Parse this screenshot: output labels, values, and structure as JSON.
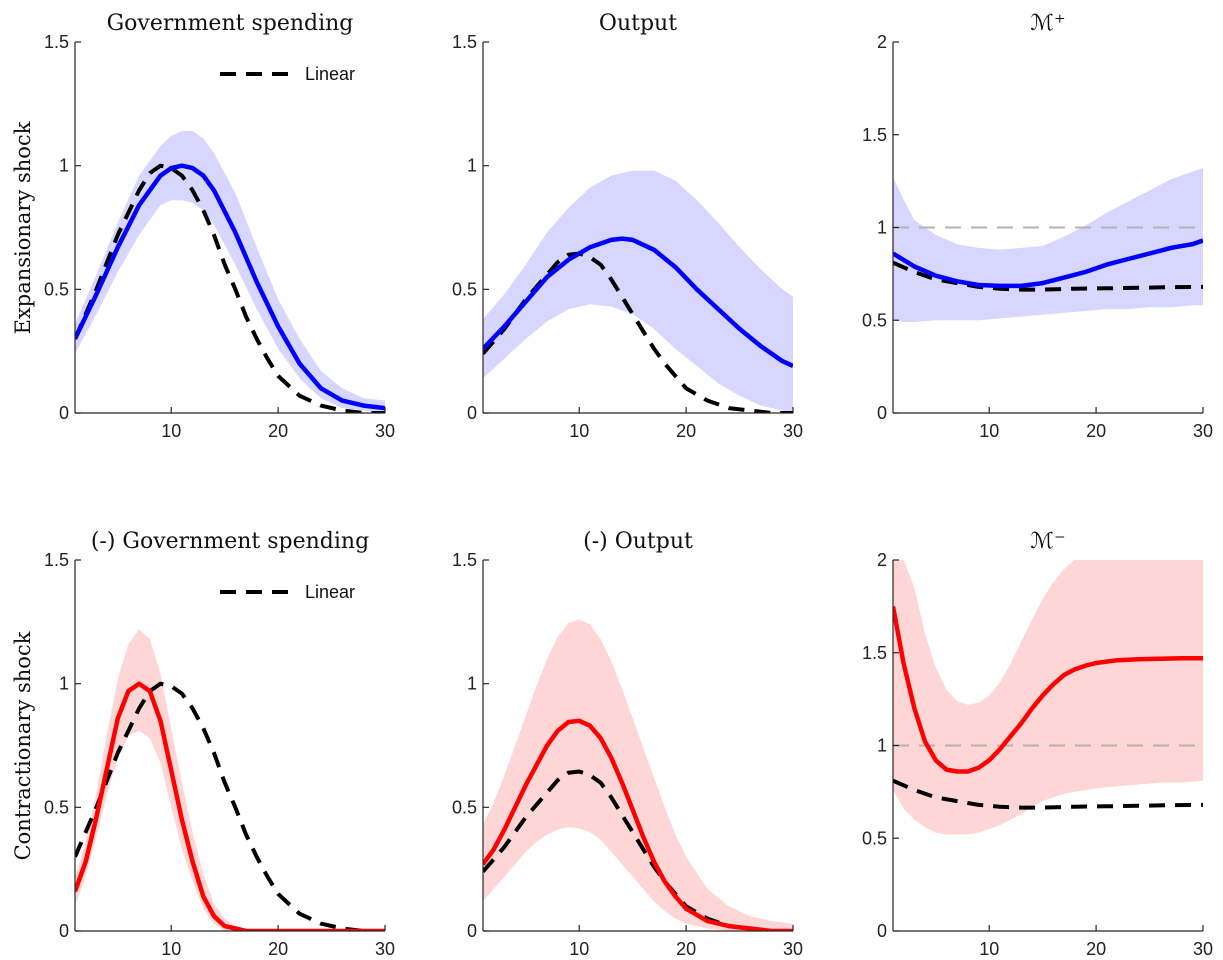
{
  "colors": {
    "expansionary": "#0000ff",
    "expansionary_band": "#d6d6ff",
    "contractionary": "#ff0000",
    "contractionary_band": "#ffd6d6",
    "linear": "#000000",
    "reference": "#b3b3b3"
  },
  "row_labels": [
    "Expansionary shock",
    "Contractionary shock"
  ],
  "chart_data": [
    {
      "type": "line",
      "row": 0,
      "col": 0,
      "title": "Government spending",
      "xlim": [
        1,
        30
      ],
      "ylim": [
        0,
        1.5
      ],
      "xticks": [
        10,
        20,
        30
      ],
      "yticks": [
        0,
        0.5,
        1,
        1.5
      ],
      "legend": {
        "position": "top-right",
        "entries": [
          "Linear"
        ]
      },
      "series": [
        {
          "name": "Linear",
          "style": "dashed",
          "color": "linear",
          "x": [
            1,
            3,
            5,
            7,
            8,
            9,
            10,
            11,
            12,
            13,
            14,
            15,
            16,
            17,
            18,
            19,
            20,
            22,
            24,
            26,
            28,
            30
          ],
          "y": [
            0.3,
            0.5,
            0.72,
            0.9,
            0.97,
            1.0,
            0.99,
            0.96,
            0.9,
            0.82,
            0.72,
            0.6,
            0.5,
            0.39,
            0.3,
            0.22,
            0.15,
            0.07,
            0.03,
            0.01,
            0.0,
            0.0
          ]
        },
        {
          "style": "solid",
          "color": "expansionary",
          "x": [
            1,
            3,
            5,
            7,
            9,
            10,
            11,
            12,
            13,
            14,
            16,
            18,
            20,
            22,
            24,
            26,
            28,
            30
          ],
          "y": [
            0.3,
            0.48,
            0.67,
            0.84,
            0.96,
            0.99,
            1.0,
            0.99,
            0.96,
            0.9,
            0.73,
            0.53,
            0.35,
            0.2,
            0.1,
            0.05,
            0.03,
            0.02
          ]
        }
      ],
      "bands": [
        {
          "color": "expansionary_band",
          "x": [
            1,
            3,
            5,
            7,
            9,
            10,
            11,
            12,
            13,
            14,
            16,
            18,
            20,
            22,
            24,
            26,
            28,
            30
          ],
          "lower": [
            0.24,
            0.4,
            0.57,
            0.72,
            0.84,
            0.86,
            0.86,
            0.85,
            0.82,
            0.76,
            0.6,
            0.42,
            0.26,
            0.14,
            0.06,
            0.02,
            0.01,
            0.0
          ],
          "upper": [
            0.36,
            0.56,
            0.77,
            0.96,
            1.08,
            1.12,
            1.14,
            1.14,
            1.11,
            1.05,
            0.89,
            0.67,
            0.46,
            0.3,
            0.17,
            0.1,
            0.06,
            0.05
          ]
        }
      ]
    },
    {
      "type": "line",
      "row": 0,
      "col": 1,
      "title": "Output",
      "xlim": [
        1,
        30
      ],
      "ylim": [
        0,
        1.5
      ],
      "xticks": [
        10,
        20,
        30
      ],
      "yticks": [
        0,
        0.5,
        1,
        1.5
      ],
      "series": [
        {
          "name": "Linear",
          "style": "dashed",
          "color": "linear",
          "x": [
            1,
            3,
            5,
            7,
            8,
            9,
            10,
            11,
            12,
            13,
            14,
            15,
            16,
            17,
            18,
            19,
            20,
            22,
            24,
            26,
            28,
            30
          ],
          "y": [
            0.24,
            0.34,
            0.46,
            0.56,
            0.61,
            0.64,
            0.645,
            0.63,
            0.6,
            0.54,
            0.47,
            0.4,
            0.33,
            0.26,
            0.2,
            0.15,
            0.1,
            0.05,
            0.02,
            0.01,
            0.0,
            0.0
          ]
        },
        {
          "style": "solid",
          "color": "expansionary",
          "x": [
            1,
            3,
            5,
            7,
            9,
            11,
            13,
            14,
            15,
            17,
            19,
            21,
            23,
            25,
            27,
            29,
            30
          ],
          "y": [
            0.26,
            0.35,
            0.45,
            0.55,
            0.62,
            0.67,
            0.7,
            0.705,
            0.7,
            0.66,
            0.59,
            0.5,
            0.42,
            0.34,
            0.27,
            0.21,
            0.19
          ]
        }
      ],
      "bands": [
        {
          "color": "expansionary_band",
          "x": [
            1,
            3,
            5,
            7,
            9,
            11,
            13,
            15,
            17,
            19,
            21,
            23,
            25,
            27,
            29,
            30
          ],
          "lower": [
            0.14,
            0.22,
            0.3,
            0.37,
            0.42,
            0.44,
            0.43,
            0.4,
            0.34,
            0.26,
            0.19,
            0.12,
            0.07,
            0.03,
            0.01,
            0.0
          ],
          "upper": [
            0.38,
            0.48,
            0.6,
            0.73,
            0.83,
            0.91,
            0.96,
            0.98,
            0.98,
            0.94,
            0.86,
            0.77,
            0.67,
            0.58,
            0.5,
            0.47
          ]
        }
      ]
    },
    {
      "type": "line",
      "row": 0,
      "col": 2,
      "title": "ℳ⁺",
      "xlim": [
        1,
        30
      ],
      "ylim": [
        0,
        2
      ],
      "xticks": [
        10,
        20,
        30
      ],
      "yticks": [
        0,
        0.5,
        1,
        1.5,
        2
      ],
      "reference_line": 1,
      "series": [
        {
          "name": "Linear",
          "style": "dashed",
          "color": "linear",
          "x": [
            1,
            3,
            5,
            7,
            9,
            11,
            13,
            15,
            18,
            21,
            24,
            27,
            30
          ],
          "y": [
            0.81,
            0.76,
            0.72,
            0.7,
            0.68,
            0.67,
            0.665,
            0.665,
            0.67,
            0.672,
            0.675,
            0.678,
            0.68
          ]
        },
        {
          "style": "solid",
          "color": "expansionary",
          "x": [
            1,
            3,
            5,
            7,
            9,
            11,
            13,
            15,
            17,
            19,
            21,
            23,
            25,
            27,
            29,
            30
          ],
          "y": [
            0.86,
            0.79,
            0.74,
            0.71,
            0.69,
            0.685,
            0.685,
            0.7,
            0.73,
            0.76,
            0.8,
            0.83,
            0.86,
            0.89,
            0.91,
            0.93
          ]
        }
      ],
      "bands": [
        {
          "color": "expansionary_band",
          "x": [
            1,
            2,
            3,
            5,
            7,
            9,
            11,
            13,
            15,
            17,
            19,
            21,
            23,
            25,
            27,
            29,
            30
          ],
          "lower": [
            0.5,
            0.49,
            0.49,
            0.5,
            0.5,
            0.5,
            0.51,
            0.52,
            0.53,
            0.54,
            0.55,
            0.56,
            0.56,
            0.57,
            0.57,
            0.58,
            0.58
          ],
          "upper": [
            1.27,
            1.15,
            1.04,
            0.96,
            0.91,
            0.89,
            0.88,
            0.89,
            0.9,
            0.95,
            1.01,
            1.08,
            1.14,
            1.2,
            1.26,
            1.3,
            1.32
          ]
        }
      ]
    },
    {
      "type": "line",
      "row": 1,
      "col": 0,
      "title": "(-) Government spending",
      "xlim": [
        1,
        30
      ],
      "ylim": [
        0,
        1.5
      ],
      "xticks": [
        10,
        20,
        30
      ],
      "yticks": [
        0,
        0.5,
        1,
        1.5
      ],
      "legend": {
        "position": "top-right",
        "entries": [
          "Linear"
        ]
      },
      "series": [
        {
          "name": "Linear",
          "style": "dashed",
          "color": "linear",
          "x": [
            1,
            3,
            5,
            7,
            8,
            9,
            10,
            11,
            12,
            13,
            14,
            15,
            16,
            17,
            18,
            19,
            20,
            22,
            24,
            26,
            28,
            30
          ],
          "y": [
            0.3,
            0.5,
            0.72,
            0.9,
            0.97,
            1.0,
            0.99,
            0.96,
            0.9,
            0.82,
            0.72,
            0.6,
            0.5,
            0.39,
            0.3,
            0.22,
            0.15,
            0.07,
            0.03,
            0.01,
            0.0,
            0.0
          ]
        },
        {
          "style": "solid",
          "color": "contractionary",
          "x": [
            1,
            2,
            3,
            4,
            5,
            6,
            7,
            8,
            9,
            10,
            11,
            12,
            13,
            14,
            15,
            16,
            17,
            18,
            20,
            24,
            30
          ],
          "y": [
            0.16,
            0.28,
            0.46,
            0.66,
            0.86,
            0.97,
            1.0,
            0.97,
            0.85,
            0.65,
            0.45,
            0.28,
            0.14,
            0.06,
            0.02,
            0.01,
            0.0,
            0.0,
            0.0,
            0.0,
            0.0
          ]
        }
      ],
      "bands": [
        {
          "color": "contractionary_band",
          "x": [
            1,
            2,
            3,
            4,
            5,
            6,
            7,
            8,
            9,
            10,
            11,
            12,
            13,
            14,
            15,
            16,
            17,
            18,
            20,
            24,
            30
          ],
          "lower": [
            0.1,
            0.22,
            0.38,
            0.55,
            0.7,
            0.79,
            0.81,
            0.78,
            0.68,
            0.5,
            0.33,
            0.2,
            0.09,
            0.03,
            0.0,
            0.0,
            0.0,
            0.0,
            0.0,
            0.0,
            0.0
          ],
          "upper": [
            0.22,
            0.36,
            0.56,
            0.8,
            1.02,
            1.16,
            1.22,
            1.18,
            1.04,
            0.82,
            0.6,
            0.4,
            0.23,
            0.11,
            0.05,
            0.02,
            0.01,
            0.0,
            0.0,
            0.0,
            0.0
          ]
        }
      ]
    },
    {
      "type": "line",
      "row": 1,
      "col": 1,
      "title": "(-) Output",
      "xlim": [
        1,
        30
      ],
      "ylim": [
        0,
        1.5
      ],
      "xticks": [
        10,
        20,
        30
      ],
      "yticks": [
        0,
        0.5,
        1,
        1.5
      ],
      "series": [
        {
          "name": "Linear",
          "style": "dashed",
          "color": "linear",
          "x": [
            1,
            3,
            5,
            7,
            8,
            9,
            10,
            11,
            12,
            13,
            14,
            15,
            16,
            17,
            18,
            19,
            20,
            22,
            24,
            26,
            28,
            30
          ],
          "y": [
            0.24,
            0.34,
            0.46,
            0.56,
            0.61,
            0.64,
            0.645,
            0.63,
            0.6,
            0.54,
            0.47,
            0.4,
            0.33,
            0.26,
            0.2,
            0.15,
            0.1,
            0.05,
            0.02,
            0.01,
            0.0,
            0.0
          ]
        },
        {
          "style": "solid",
          "color": "contractionary",
          "x": [
            1,
            2,
            3,
            4,
            5,
            6,
            7,
            8,
            9,
            10,
            11,
            12,
            13,
            14,
            15,
            16,
            17,
            18,
            19,
            20,
            22,
            24,
            26,
            28,
            30
          ],
          "y": [
            0.27,
            0.33,
            0.41,
            0.5,
            0.59,
            0.67,
            0.75,
            0.81,
            0.845,
            0.85,
            0.83,
            0.78,
            0.7,
            0.6,
            0.49,
            0.38,
            0.28,
            0.2,
            0.14,
            0.09,
            0.04,
            0.02,
            0.01,
            0.0,
            0.0
          ]
        }
      ],
      "bands": [
        {
          "color": "contractionary_band",
          "x": [
            1,
            2,
            3,
            4,
            5,
            6,
            7,
            8,
            9,
            10,
            11,
            12,
            13,
            14,
            15,
            16,
            17,
            18,
            19,
            20,
            22,
            24,
            26,
            28,
            30
          ],
          "lower": [
            0.12,
            0.17,
            0.22,
            0.27,
            0.32,
            0.36,
            0.39,
            0.41,
            0.42,
            0.415,
            0.4,
            0.37,
            0.32,
            0.27,
            0.22,
            0.17,
            0.12,
            0.08,
            0.05,
            0.03,
            0.01,
            0.0,
            0.0,
            0.0,
            0.0
          ],
          "upper": [
            0.43,
            0.52,
            0.63,
            0.75,
            0.87,
            0.99,
            1.1,
            1.19,
            1.245,
            1.26,
            1.24,
            1.18,
            1.09,
            0.98,
            0.86,
            0.74,
            0.62,
            0.5,
            0.39,
            0.3,
            0.17,
            0.1,
            0.06,
            0.04,
            0.03
          ]
        }
      ]
    },
    {
      "type": "line",
      "row": 1,
      "col": 2,
      "title": "ℳ⁻",
      "xlim": [
        1,
        30
      ],
      "ylim": [
        0,
        2
      ],
      "xticks": [
        10,
        20,
        30
      ],
      "yticks": [
        0,
        0.5,
        1,
        1.5,
        2
      ],
      "reference_line": 1,
      "series": [
        {
          "name": "Linear",
          "style": "dashed",
          "color": "linear",
          "x": [
            1,
            3,
            5,
            7,
            9,
            11,
            13,
            15,
            18,
            21,
            24,
            27,
            30
          ],
          "y": [
            0.81,
            0.76,
            0.72,
            0.7,
            0.68,
            0.67,
            0.665,
            0.665,
            0.67,
            0.672,
            0.675,
            0.678,
            0.68
          ]
        },
        {
          "style": "solid",
          "color": "contractionary",
          "x": [
            1,
            2,
            3,
            4,
            5,
            6,
            7,
            8,
            9,
            10,
            11,
            12,
            13,
            14,
            15,
            16,
            17,
            18,
            19,
            20,
            22,
            24,
            26,
            28,
            30
          ],
          "y": [
            1.75,
            1.44,
            1.2,
            1.02,
            0.92,
            0.87,
            0.86,
            0.86,
            0.88,
            0.92,
            0.98,
            1.05,
            1.12,
            1.2,
            1.27,
            1.33,
            1.38,
            1.41,
            1.43,
            1.445,
            1.46,
            1.465,
            1.468,
            1.47,
            1.47
          ]
        }
      ],
      "bands": [
        {
          "color": "contractionary_band",
          "x": [
            1,
            2,
            3,
            4,
            5,
            6,
            7,
            8,
            9,
            10,
            11,
            12,
            13,
            14,
            15,
            16,
            17,
            18,
            19,
            20,
            22,
            24,
            26,
            28,
            30
          ],
          "lower": [
            0.76,
            0.66,
            0.6,
            0.56,
            0.53,
            0.52,
            0.52,
            0.52,
            0.53,
            0.55,
            0.57,
            0.6,
            0.63,
            0.67,
            0.7,
            0.72,
            0.74,
            0.75,
            0.76,
            0.77,
            0.78,
            0.79,
            0.8,
            0.8,
            0.81
          ],
          "upper": [
            2.0,
            2.0,
            1.85,
            1.6,
            1.42,
            1.3,
            1.24,
            1.22,
            1.23,
            1.27,
            1.34,
            1.44,
            1.56,
            1.68,
            1.79,
            1.88,
            1.95,
            2.0,
            2.0,
            2.0,
            2.0,
            2.0,
            2.0,
            2.0,
            2.0
          ]
        }
      ]
    }
  ]
}
